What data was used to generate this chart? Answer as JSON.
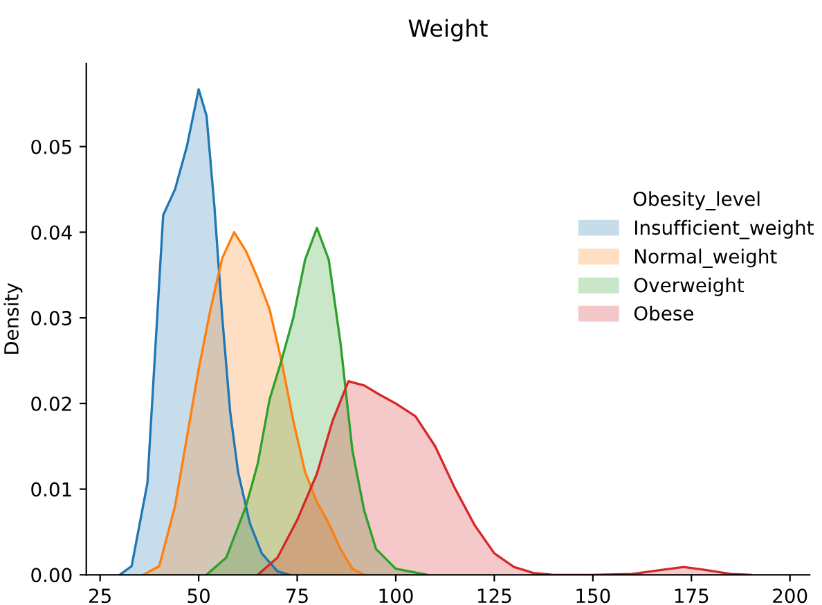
{
  "chart_data": {
    "type": "area",
    "title": "Weight",
    "ylabel": "Density",
    "legend_title": "Obesity_level",
    "legend": "right",
    "xlim": [
      21.5,
      205
    ],
    "ylim": [
      0,
      0.0597
    ],
    "xticks": [
      25,
      50,
      75,
      100,
      125,
      150,
      175,
      200
    ],
    "yticks": [
      {
        "value": 0,
        "label": "0.00"
      },
      {
        "value": 0.01,
        "label": "0.01"
      },
      {
        "value": 0.02,
        "label": "0.02"
      },
      {
        "value": 0.03,
        "label": "0.03"
      },
      {
        "value": 0.04,
        "label": "0.04"
      },
      {
        "value": 0.05,
        "label": "0.05"
      }
    ],
    "grid": false,
    "series": [
      {
        "name": "Insufficient_weight",
        "color": "#1f77b4",
        "x": [
          30,
          33,
          37,
          41,
          44,
          47,
          50,
          52,
          54,
          56,
          58,
          60,
          63,
          66,
          70,
          73
        ],
        "values": [
          0,
          0.001,
          0.0107,
          0.042,
          0.045,
          0.05,
          0.0567,
          0.0536,
          0.043,
          0.03,
          0.019,
          0.012,
          0.006,
          0.0025,
          0.0004,
          0
        ]
      },
      {
        "name": "Normal_weight",
        "color": "#ff7f0e",
        "x": [
          36,
          40,
          44,
          47,
          50,
          53,
          56,
          59,
          62,
          65,
          68,
          71,
          74,
          77,
          80,
          83,
          86,
          89,
          92
        ],
        "values": [
          0,
          0.001,
          0.008,
          0.016,
          0.024,
          0.031,
          0.037,
          0.04,
          0.0378,
          0.0346,
          0.031,
          0.025,
          0.018,
          0.012,
          0.0085,
          0.006,
          0.003,
          0.0007,
          0
        ]
      },
      {
        "name": "Overweight",
        "color": "#2ca02c",
        "x": [
          52,
          57,
          62,
          65,
          68,
          71,
          74,
          77,
          80,
          83,
          86,
          89,
          92,
          95,
          100,
          108
        ],
        "values": [
          0,
          0.002,
          0.008,
          0.013,
          0.0205,
          0.025,
          0.03,
          0.0368,
          0.0405,
          0.0368,
          0.027,
          0.0145,
          0.0075,
          0.003,
          0.0007,
          0
        ]
      },
      {
        "name": "Obese",
        "color": "#d62728",
        "x": [
          65,
          70,
          75,
          80,
          84,
          88,
          92,
          96,
          100,
          105,
          110,
          115,
          120,
          125,
          130,
          135,
          140,
          150,
          160,
          168,
          173,
          178,
          185,
          190
        ],
        "values": [
          0,
          0.002,
          0.0064,
          0.0118,
          0.018,
          0.0226,
          0.0221,
          0.021,
          0.02,
          0.0185,
          0.015,
          0.0101,
          0.0058,
          0.0025,
          0.0009,
          0.0002,
          0,
          0,
          0.0001,
          0.0006,
          0.0009,
          0.0006,
          0.0001,
          0
        ]
      }
    ]
  }
}
